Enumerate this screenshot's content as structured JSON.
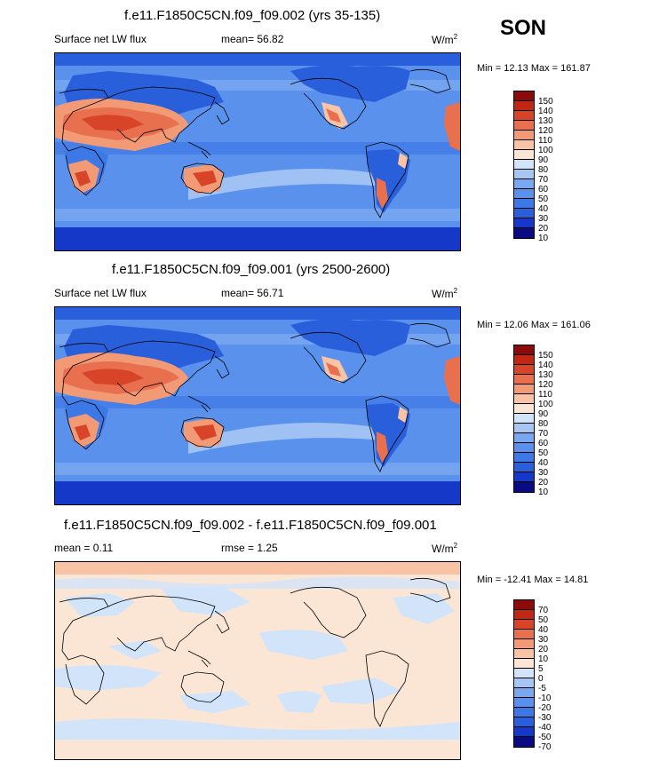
{
  "season": "SON",
  "panels": [
    {
      "title": "f.e11.F1850C5CN.f09_f09.002 (yrs 35-135)",
      "left_label": "Surface net LW flux",
      "mean_label": "mean=  56.82",
      "units": "W/m",
      "units_sup": "2",
      "minmax": "Min =  12.13 Max = 161.87"
    },
    {
      "title": "f.e11.F1850C5CN.f09_f09.001 (yrs 2500-2600)",
      "left_label": "Surface net LW flux",
      "mean_label": "mean=  56.71",
      "units": "W/m",
      "units_sup": "2",
      "minmax": "Min =  12.06 Max = 161.06"
    },
    {
      "title": "f.e11.F1850C5CN.f09_f09.002 - f.e11.F1850C5CN.f09_f09.001",
      "left_label": "mean =   0.11",
      "mean_label": "rmse =   1.25",
      "units": "W/m",
      "units_sup": "2",
      "minmax": "Min = -12.41 Max =  14.81"
    }
  ],
  "colors": {
    "abs": [
      "#0a0a82",
      "#1638c8",
      "#2a5fdc",
      "#3c78e6",
      "#5a91ec",
      "#7aa8f0",
      "#a6c6f4",
      "#d2e4fa",
      "#fbe6d6",
      "#f9c3a6",
      "#f29a76",
      "#e8704e",
      "#d84428",
      "#c02814",
      "#8c0a0a"
    ],
    "diff": [
      "#0a0a82",
      "#1638c8",
      "#2a5fdc",
      "#3c78e6",
      "#5a91ec",
      "#7aa8f0",
      "#a6c6f4",
      "#d2e4fa",
      "#fbe6d6",
      "#f9c3a6",
      "#f29a76",
      "#e8704e",
      "#d84428",
      "#c02814",
      "#8c0a0a"
    ]
  },
  "chart_data": [
    {
      "type": "heatmap",
      "title": "f.e11.F1850C5CN.f09_f09.002 (yrs 35-135)",
      "variable": "Surface net LW flux",
      "units": "W/m2",
      "mean": 56.82,
      "min": 12.13,
      "max": 161.87,
      "colorbar_levels": [
        150,
        140,
        130,
        120,
        110,
        100,
        90,
        80,
        70,
        60,
        50,
        40,
        30,
        20,
        10
      ]
    },
    {
      "type": "heatmap",
      "title": "f.e11.F1850C5CN.f09_f09.001 (yrs 2500-2600)",
      "variable": "Surface net LW flux",
      "units": "W/m2",
      "mean": 56.71,
      "min": 12.06,
      "max": 161.06,
      "colorbar_levels": [
        150,
        140,
        130,
        120,
        110,
        100,
        90,
        80,
        70,
        60,
        50,
        40,
        30,
        20,
        10
      ]
    },
    {
      "type": "heatmap",
      "title": "f.e11.F1850C5CN.f09_f09.002 - f.e11.F1850C5CN.f09_f09.001",
      "units": "W/m2",
      "mean": 0.11,
      "rmse": 1.25,
      "min": -12.41,
      "max": 14.81,
      "colorbar_levels": [
        70,
        50,
        40,
        30,
        20,
        10,
        5,
        0,
        -5,
        -10,
        -20,
        -30,
        -40,
        -50,
        -70
      ]
    }
  ]
}
